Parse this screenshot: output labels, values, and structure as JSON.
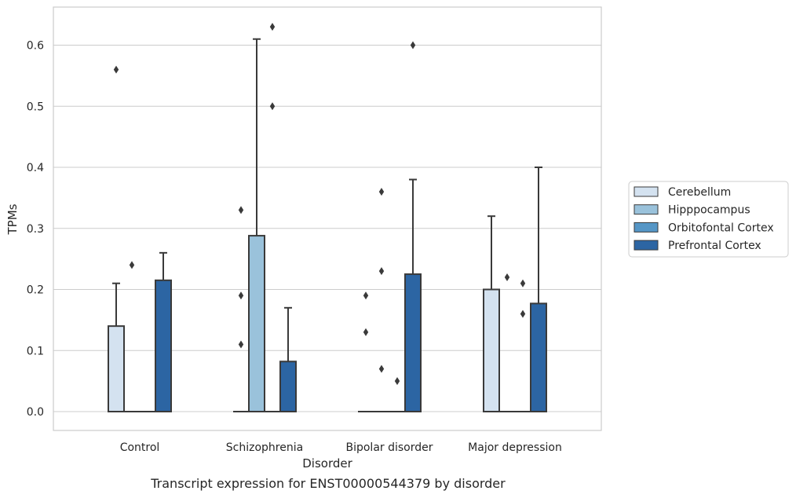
{
  "caption": "Transcript expression for ENST00000544379 by disorder",
  "chart_data": {
    "type": "box",
    "title": "",
    "xlabel": "Disorder",
    "ylabel": "TPMs",
    "ylim": [
      -0.03,
      0.66
    ],
    "yticks": [
      0.0,
      0.1,
      0.2,
      0.3,
      0.4,
      0.5,
      0.6
    ],
    "ytick_labels": [
      "0.0",
      "0.1",
      "0.2",
      "0.3",
      "0.4",
      "0.5",
      "0.6"
    ],
    "grid": "horizontal",
    "legend_position": "right",
    "categories": [
      "Control",
      "Schizophrenia",
      "Bipolar disorder",
      "Major depression"
    ],
    "series": [
      {
        "name": "Cerebellum",
        "color": "#d4e2f0",
        "boxes": [
          {
            "q1": 0.0,
            "median": 0.0,
            "q3": 0.14,
            "whisker_low": 0.0,
            "whisker_high": 0.21,
            "outliers": [
              0.56
            ]
          },
          {
            "q1": 0.0,
            "median": 0.0,
            "q3": 0.0,
            "whisker_low": 0.0,
            "whisker_high": 0.0,
            "outliers": [
              0.11,
              0.19,
              0.33
            ]
          },
          {
            "q1": 0.0,
            "median": 0.0,
            "q3": 0.0,
            "whisker_low": 0.0,
            "whisker_high": 0.0,
            "outliers": [
              0.13,
              0.19
            ]
          },
          {
            "q1": 0.0,
            "median": 0.0,
            "q3": 0.2,
            "whisker_low": 0.0,
            "whisker_high": 0.32,
            "outliers": []
          }
        ]
      },
      {
        "name": "Hipppocampus",
        "color": "#9ac2db",
        "boxes": [
          {
            "q1": 0.0,
            "median": 0.0,
            "q3": 0.0,
            "whisker_low": 0.0,
            "whisker_high": 0.0,
            "outliers": [
              0.24
            ]
          },
          {
            "q1": 0.0,
            "median": 0.0,
            "q3": 0.288,
            "whisker_low": 0.0,
            "whisker_high": 0.61,
            "outliers": []
          },
          {
            "q1": 0.0,
            "median": 0.0,
            "q3": 0.0,
            "whisker_low": 0.0,
            "whisker_high": 0.0,
            "outliers": [
              0.07,
              0.23,
              0.36
            ]
          },
          {
            "q1": 0.0,
            "median": 0.0,
            "q3": 0.0,
            "whisker_low": 0.0,
            "whisker_high": 0.0,
            "outliers": [
              0.22
            ]
          }
        ]
      },
      {
        "name": "Orbitofontal Cortex",
        "color": "#5596c6",
        "boxes": [
          {
            "q1": 0.0,
            "median": 0.0,
            "q3": 0.0,
            "whisker_low": 0.0,
            "whisker_high": 0.0,
            "outliers": []
          },
          {
            "q1": 0.0,
            "median": 0.0,
            "q3": 0.0,
            "whisker_low": 0.0,
            "whisker_high": 0.0,
            "outliers": [
              0.5,
              0.63
            ]
          },
          {
            "q1": 0.0,
            "median": 0.0,
            "q3": 0.0,
            "whisker_low": 0.0,
            "whisker_high": 0.0,
            "outliers": [
              0.05
            ]
          },
          {
            "q1": 0.0,
            "median": 0.0,
            "q3": 0.0,
            "whisker_low": 0.0,
            "whisker_high": 0.0,
            "outliers": [
              0.16,
              0.21
            ]
          }
        ]
      },
      {
        "name": "Prefrontal Cortex",
        "color": "#2c65a3",
        "boxes": [
          {
            "q1": 0.0,
            "median": 0.0,
            "q3": 0.215,
            "whisker_low": 0.0,
            "whisker_high": 0.26,
            "outliers": []
          },
          {
            "q1": 0.0,
            "median": 0.0,
            "q3": 0.082,
            "whisker_low": 0.0,
            "whisker_high": 0.17,
            "outliers": []
          },
          {
            "q1": 0.0,
            "median": 0.0,
            "q3": 0.225,
            "whisker_low": 0.0,
            "whisker_high": 0.38,
            "outliers": [
              0.6
            ]
          },
          {
            "q1": 0.0,
            "median": 0.0,
            "q3": 0.177,
            "whisker_low": 0.0,
            "whisker_high": 0.4,
            "outliers": []
          }
        ]
      }
    ]
  }
}
